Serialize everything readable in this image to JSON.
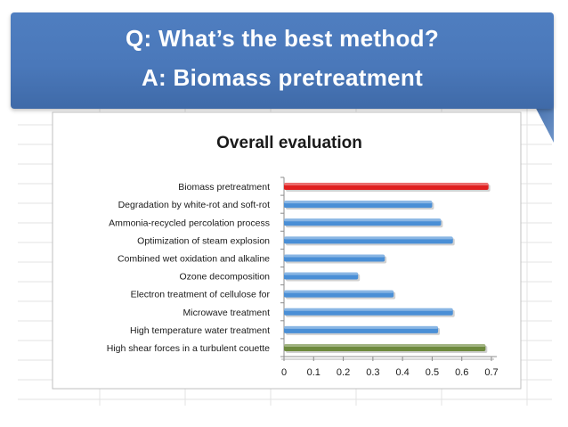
{
  "slide": {
    "question": "Q: What’s the best method?",
    "answer": "A: Biomass pretreatment"
  },
  "chart_data": {
    "type": "bar",
    "orientation": "horizontal",
    "title": "Overall evaluation",
    "categories": [
      "Biomass pretreatment",
      "Degradation by white-rot and soft-rot",
      "Ammonia-recycled percolation process",
      "Optimization of steam explosion",
      "Combined wet oxidation and alkaline",
      "Ozone decomposition",
      "Electron treatment of cellulose for",
      "Microwave treatment",
      "High temperature water treatment",
      "High shear forces in a turbulent couette"
    ],
    "values": [
      0.69,
      0.5,
      0.53,
      0.57,
      0.34,
      0.25,
      0.37,
      0.57,
      0.52,
      0.68
    ],
    "colors": [
      "#e02020",
      "#4a8fd6",
      "#4a8fd6",
      "#4a8fd6",
      "#4a8fd6",
      "#4a8fd6",
      "#4a8fd6",
      "#4a8fd6",
      "#4a8fd6",
      "#6e8a3e"
    ],
    "xlim": [
      0,
      0.7
    ],
    "ticks": [
      0,
      0.1,
      0.2,
      0.3,
      0.4,
      0.5,
      0.6,
      0.7
    ],
    "tick_labels": [
      "0",
      "0.1",
      "0.2",
      "0.3",
      "0.4",
      "0.5",
      "0.6",
      "0.7"
    ],
    "grid": false,
    "legend": "none",
    "xlabel": "",
    "ylabel": ""
  }
}
